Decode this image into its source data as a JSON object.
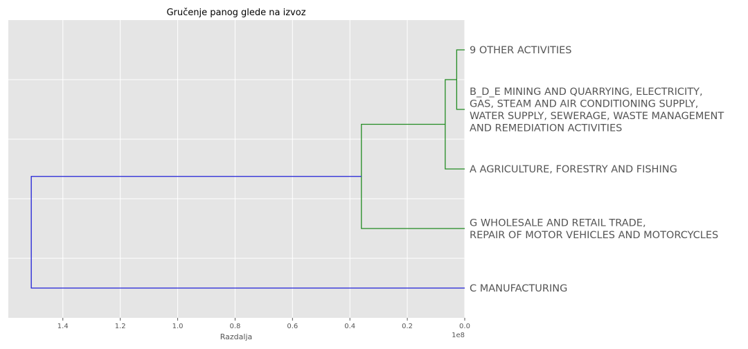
{
  "chart_data": {
    "type": "dendrogram",
    "orientation": "left",
    "title": "Gručenje panog glede na izvoz",
    "xlabel": "Razdalja",
    "x_offset_label": "1e8",
    "xlim": [
      1.59,
      0.0
    ],
    "x_scale": 100000000,
    "x_ticks": [
      {
        "value": 1.4,
        "label": "1.4"
      },
      {
        "value": 1.2,
        "label": "1.2"
      },
      {
        "value": 1.0,
        "label": "1.0"
      },
      {
        "value": 0.8,
        "label": "0.8"
      },
      {
        "value": 0.6,
        "label": "0.6"
      },
      {
        "value": 0.4,
        "label": "0.4"
      },
      {
        "value": 0.2,
        "label": "0.2"
      },
      {
        "value": 0.0,
        "label": "0.0"
      }
    ],
    "grid": true,
    "colors": {
      "background": "#e5e5e5",
      "grid": "#ffffff",
      "cluster": "#228b22",
      "above_threshold": "#1f1fd6"
    },
    "leaves": [
      {
        "id": "leaf-9",
        "lines": [
          "9 OTHER ACTIVITIES"
        ]
      },
      {
        "id": "leaf-bde",
        "lines": [
          "B_D_E  MINING AND QUARRYING, ELECTRICITY,",
          "GAS, STEAM AND AIR CONDITIONING SUPPLY,",
          "WATER SUPPLY, SEWERAGE, WASTE MANAGEMENT",
          "AND REMEDIATION ACTIVITIES"
        ]
      },
      {
        "id": "leaf-a",
        "lines": [
          "A AGRICULTURE, FORESTRY AND FISHING"
        ]
      },
      {
        "id": "leaf-g",
        "lines": [
          "G WHOLESALE AND RETAIL TRADE,",
          "REPAIR OF MOTOR VEHICLES AND MOTORCYCLES"
        ]
      },
      {
        "id": "leaf-c",
        "lines": [
          "C MANUFACTURING"
        ]
      }
    ],
    "merges": [
      {
        "left": 0,
        "right": 1,
        "distance": 0.028,
        "color": "cluster"
      },
      {
        "left": 2,
        "right": 5,
        "distance": 0.068,
        "color": "cluster"
      },
      {
        "left": 3,
        "right": 6,
        "distance": 0.36,
        "color": "cluster"
      },
      {
        "left": 4,
        "right": 7,
        "distance": 1.51,
        "color": "above_threshold"
      }
    ]
  }
}
